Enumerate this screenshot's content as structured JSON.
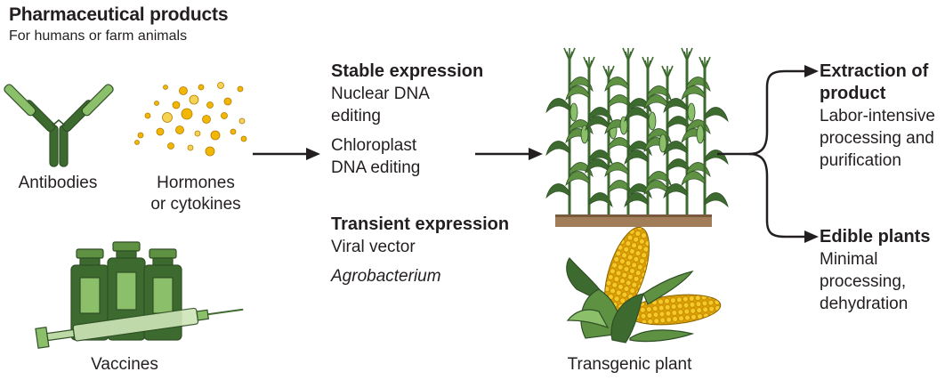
{
  "header": {
    "title": "Pharmaceutical products",
    "subtitle": "For humans or farm animals"
  },
  "products": [
    {
      "label": "Antibodies",
      "icon": "antibody-icon"
    },
    {
      "label": "Hormones or cytokines",
      "line1": "Hormones",
      "line2": "or cytokines",
      "icon": "hormone-dots-icon"
    },
    {
      "label": "Vaccines",
      "icon": "vaccine-vials-syringe-icon"
    }
  ],
  "expression": {
    "stable": {
      "title": "Stable expression",
      "items": [
        "Nuclear DNA editing",
        "Chloroplast DNA editing"
      ],
      "lines": [
        "Nuclear DNA",
        "editing",
        "Chloroplast",
        "DNA editing"
      ]
    },
    "transient": {
      "title": "Transient expression",
      "items": [
        "Viral vector",
        "Agrobacterium"
      ]
    }
  },
  "plant": {
    "label": "Transgenic plant",
    "icons": [
      "corn-field-icon",
      "corn-cobs-icon"
    ]
  },
  "outcomes": [
    {
      "title": "Extraction of product",
      "title_lines": [
        "Extraction of",
        "product"
      ],
      "desc": "Labor-intensive processing and purification",
      "desc_lines": [
        "Labor-intensive",
        "processing and",
        "purification"
      ]
    },
    {
      "title": "Edible plants",
      "desc": "Minimal processing, dehydration",
      "desc_lines": [
        "Minimal",
        "processing,",
        "dehydration"
      ]
    }
  ],
  "colors": {
    "green_dark": "#3d6b2f",
    "green_mid": "#5f9143",
    "green_light": "#8cbf6a",
    "gold": "#f2b705",
    "gold_light": "#f7d354",
    "soil": "#a27d5a",
    "text": "#231f20"
  }
}
